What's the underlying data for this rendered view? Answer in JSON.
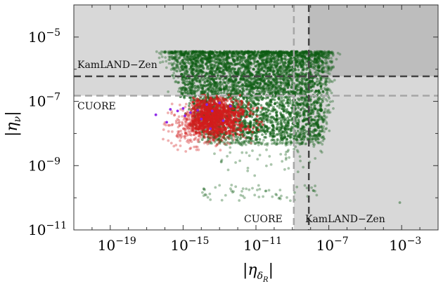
{
  "chart_data": {
    "type": "scatter",
    "title": "",
    "xlabel": "|η_δR|",
    "ylabel": "|η_ν|",
    "x_scale": "log",
    "y_scale": "log",
    "xlim": [
      1e-21,
      0.1
    ],
    "ylim": [
      1e-11,
      0.0001
    ],
    "x_ticks": [
      {
        "base": "10",
        "exp": "−19",
        "value": 1e-19
      },
      {
        "base": "10",
        "exp": "−15",
        "value": 1e-15
      },
      {
        "base": "10",
        "exp": "−11",
        "value": 1e-11
      },
      {
        "base": "10",
        "exp": "−7",
        "value": 1e-07
      },
      {
        "base": "10",
        "exp": "−3",
        "value": 0.001
      }
    ],
    "y_ticks": [
      {
        "base": "10",
        "exp": "−5",
        "value": 1e-05
      },
      {
        "base": "10",
        "exp": "−7",
        "value": 1e-07
      },
      {
        "base": "10",
        "exp": "−9",
        "value": 1e-09
      },
      {
        "base": "10",
        "exp": "−11",
        "value": 1e-11
      }
    ],
    "bounds": [
      {
        "label": "KamLAND−Zen",
        "axis": "y",
        "value": 6e-07,
        "style": "dark-dashed"
      },
      {
        "label": "CUORE",
        "axis": "y",
        "value": 1.5e-07,
        "style": "light-dashed"
      },
      {
        "label": "CUORE",
        "axis": "x",
        "value": 1.2e-09,
        "style": "light-dashed"
      },
      {
        "label": "KamLAND−Zen",
        "axis": "x",
        "value": 8e-09,
        "style": "dark-dashed"
      }
    ],
    "series": [
      {
        "color": "#2e6b2a",
        "x_range": [
          1e-16,
          0.1
        ],
        "y_range": [
          3e-10,
          3.5e-06
        ]
      },
      {
        "color": "#d43030",
        "x_range": [
          1e-16,
          3e-11
        ],
        "y_range": [
          1e-09,
          2e-07
        ]
      },
      {
        "color": "#8a2be2",
        "x_range": [
          3e-17,
          1e-13
        ],
        "y_range": [
          1e-08,
          1.5e-07
        ]
      }
    ],
    "grid": false,
    "legend": "none"
  },
  "colors": {
    "excluded_light": "#d8d8d8",
    "excluded_dark": "#bdbdbd",
    "green": "#0f5c14",
    "red": "#d21c1c",
    "purple": "#8a20e8"
  }
}
